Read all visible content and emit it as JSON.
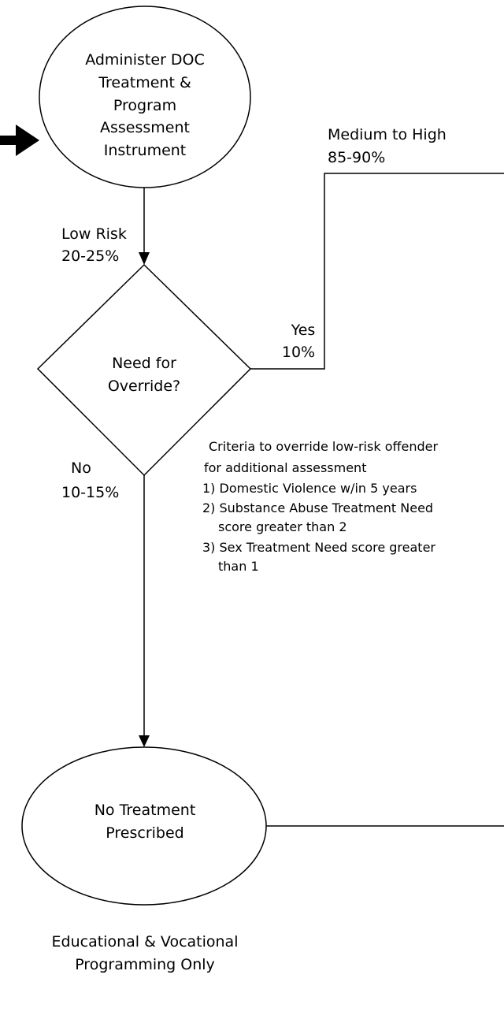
{
  "assess_node": {
    "lines": [
      "Administer DOC",
      "Treatment &",
      "Program",
      "Assessment",
      "Instrument"
    ]
  },
  "high_branch": {
    "lines": [
      "Medium to High",
      "85-90%"
    ]
  },
  "low_branch": {
    "lines": [
      "Low Risk",
      "20-25%"
    ]
  },
  "decision_node": {
    "lines": [
      "Need for",
      "Override?"
    ]
  },
  "yes_branch": {
    "lines": [
      "Yes",
      "10%"
    ]
  },
  "no_branch": {
    "lines": [
      "No",
      "10-15%"
    ]
  },
  "criteria": {
    "lines": [
      "Criteria to override low-risk offender",
      "for additional assessment",
      "1) Domestic Violence w/in 5 years",
      "2) Substance Abuse Treatment Need",
      "score greater than 2",
      "3) Sex Treatment Need score greater",
      "than 1"
    ]
  },
  "no_treatment_node": {
    "lines": [
      "No Treatment",
      "Prescribed"
    ]
  },
  "caption": {
    "lines": [
      "Educational & Vocational",
      "Programming Only"
    ]
  }
}
